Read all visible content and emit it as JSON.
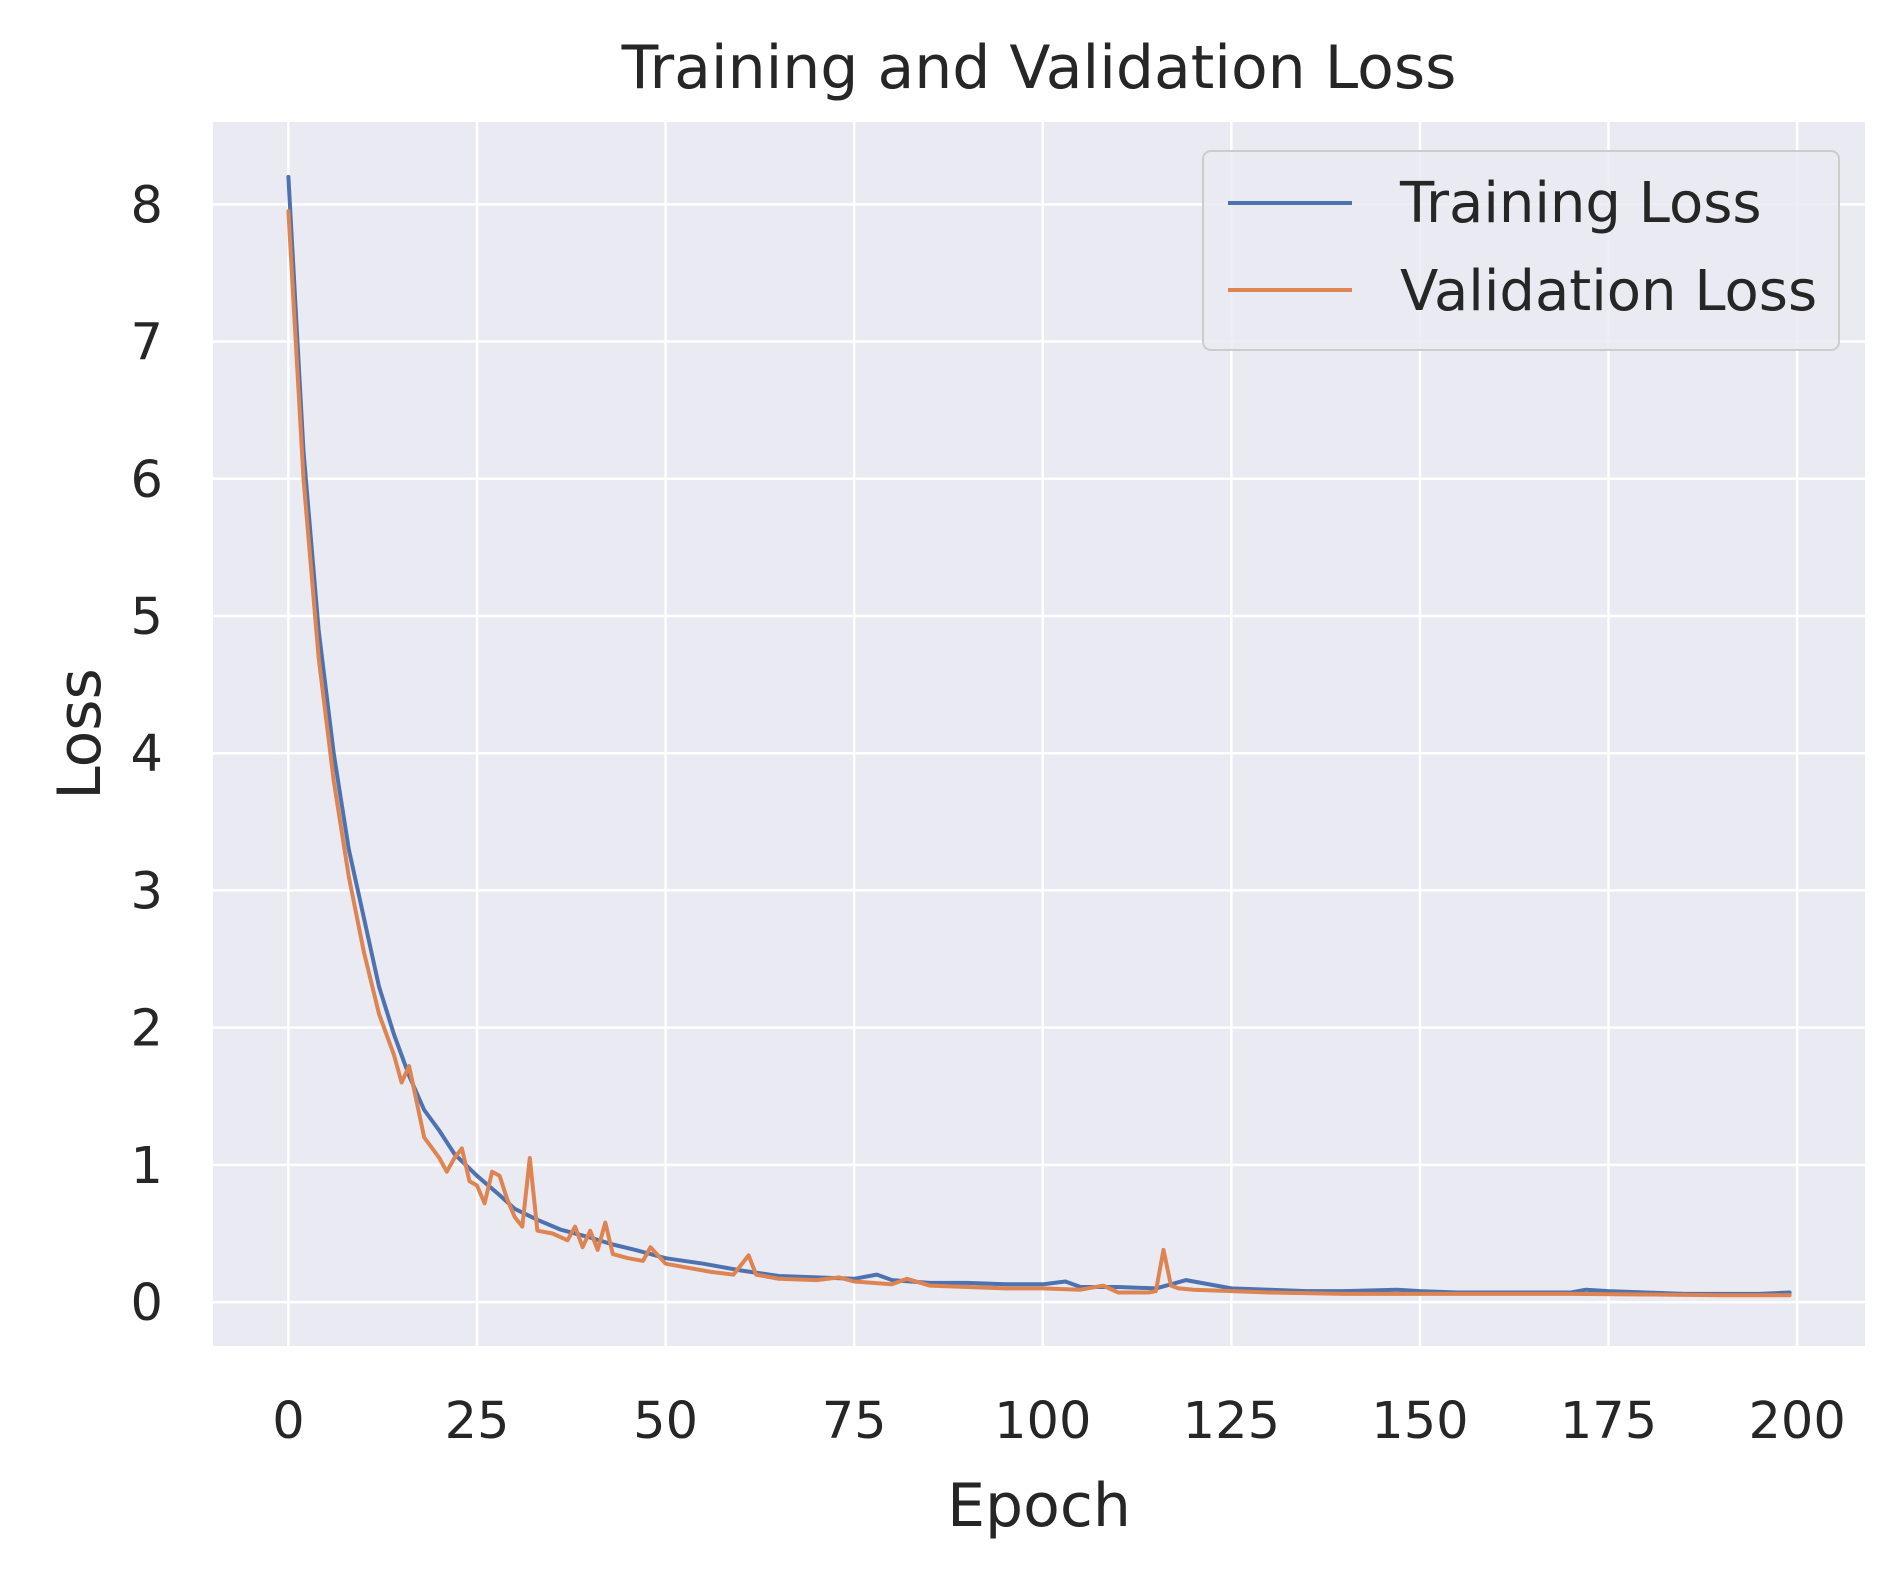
{
  "chart_data": {
    "type": "line",
    "title": "Training and Validation Loss",
    "xlabel": "Epoch",
    "ylabel": "Loss",
    "xlim": [
      -10,
      209
    ],
    "ylim": [
      -0.32,
      8.6
    ],
    "x_ticks": [
      "0",
      "25",
      "50",
      "75",
      "100",
      "125",
      "150",
      "175",
      "200"
    ],
    "y_ticks": [
      "0",
      "1",
      "2",
      "3",
      "4",
      "5",
      "6",
      "7",
      "8"
    ],
    "grid": true,
    "legend_position": "top-right",
    "background_color": "#eaeaf2",
    "grid_color": "#ffffff",
    "series": [
      {
        "name": "Training Loss",
        "color": "#4c72b0",
        "points": [
          [
            0,
            8.2
          ],
          [
            2,
            6.2
          ],
          [
            4,
            4.9
          ],
          [
            6,
            4.0
          ],
          [
            8,
            3.3
          ],
          [
            10,
            2.8
          ],
          [
            12,
            2.3
          ],
          [
            14,
            1.95
          ],
          [
            16,
            1.65
          ],
          [
            18,
            1.4
          ],
          [
            20,
            1.25
          ],
          [
            22,
            1.08
          ],
          [
            25,
            0.92
          ],
          [
            28,
            0.78
          ],
          [
            30,
            0.68
          ],
          [
            33,
            0.6
          ],
          [
            36,
            0.53
          ],
          [
            40,
            0.47
          ],
          [
            43,
            0.42
          ],
          [
            46,
            0.38
          ],
          [
            50,
            0.32
          ],
          [
            55,
            0.28
          ],
          [
            60,
            0.23
          ],
          [
            65,
            0.19
          ],
          [
            70,
            0.18
          ],
          [
            75,
            0.17
          ],
          [
            78,
            0.2
          ],
          [
            80,
            0.16
          ],
          [
            85,
            0.14
          ],
          [
            90,
            0.14
          ],
          [
            95,
            0.13
          ],
          [
            100,
            0.13
          ],
          [
            103,
            0.15
          ],
          [
            105,
            0.11
          ],
          [
            110,
            0.11
          ],
          [
            115,
            0.1
          ],
          [
            117,
            0.13
          ],
          [
            119,
            0.16
          ],
          [
            121,
            0.14
          ],
          [
            125,
            0.1
          ],
          [
            130,
            0.09
          ],
          [
            135,
            0.08
          ],
          [
            140,
            0.08
          ],
          [
            147,
            0.09
          ],
          [
            150,
            0.08
          ],
          [
            155,
            0.07
          ],
          [
            160,
            0.07
          ],
          [
            165,
            0.07
          ],
          [
            170,
            0.07
          ],
          [
            172,
            0.09
          ],
          [
            175,
            0.08
          ],
          [
            180,
            0.07
          ],
          [
            185,
            0.06
          ],
          [
            190,
            0.06
          ],
          [
            195,
            0.06
          ],
          [
            199,
            0.07
          ]
        ]
      },
      {
        "name": "Validation Loss",
        "color": "#dd8452",
        "points": [
          [
            0,
            7.95
          ],
          [
            2,
            6.0
          ],
          [
            4,
            4.7
          ],
          [
            6,
            3.8
          ],
          [
            8,
            3.1
          ],
          [
            10,
            2.55
          ],
          [
            12,
            2.1
          ],
          [
            14,
            1.8
          ],
          [
            15,
            1.6
          ],
          [
            16,
            1.72
          ],
          [
            18,
            1.2
          ],
          [
            20,
            1.05
          ],
          [
            21,
            0.95
          ],
          [
            22,
            1.05
          ],
          [
            23,
            1.12
          ],
          [
            24,
            0.88
          ],
          [
            25,
            0.85
          ],
          [
            26,
            0.72
          ],
          [
            27,
            0.95
          ],
          [
            28,
            0.92
          ],
          [
            29,
            0.75
          ],
          [
            30,
            0.62
          ],
          [
            31,
            0.55
          ],
          [
            32,
            1.05
          ],
          [
            33,
            0.52
          ],
          [
            35,
            0.5
          ],
          [
            37,
            0.45
          ],
          [
            38,
            0.55
          ],
          [
            39,
            0.4
          ],
          [
            40,
            0.52
          ],
          [
            41,
            0.38
          ],
          [
            42,
            0.58
          ],
          [
            43,
            0.35
          ],
          [
            45,
            0.32
          ],
          [
            47,
            0.3
          ],
          [
            48,
            0.4
          ],
          [
            50,
            0.28
          ],
          [
            53,
            0.25
          ],
          [
            56,
            0.22
          ],
          [
            59,
            0.2
          ],
          [
            61,
            0.34
          ],
          [
            62,
            0.2
          ],
          [
            65,
            0.17
          ],
          [
            70,
            0.16
          ],
          [
            73,
            0.18
          ],
          [
            75,
            0.15
          ],
          [
            80,
            0.13
          ],
          [
            82,
            0.17
          ],
          [
            85,
            0.12
          ],
          [
            90,
            0.11
          ],
          [
            95,
            0.1
          ],
          [
            100,
            0.1
          ],
          [
            105,
            0.09
          ],
          [
            108,
            0.12
          ],
          [
            110,
            0.07
          ],
          [
            114,
            0.07
          ],
          [
            115,
            0.08
          ],
          [
            116,
            0.38
          ],
          [
            117,
            0.12
          ],
          [
            118,
            0.1
          ],
          [
            120,
            0.09
          ],
          [
            125,
            0.08
          ],
          [
            130,
            0.07
          ],
          [
            140,
            0.06
          ],
          [
            150,
            0.06
          ],
          [
            160,
            0.06
          ],
          [
            170,
            0.06
          ],
          [
            180,
            0.055
          ],
          [
            190,
            0.05
          ],
          [
            199,
            0.05
          ]
        ]
      }
    ]
  }
}
